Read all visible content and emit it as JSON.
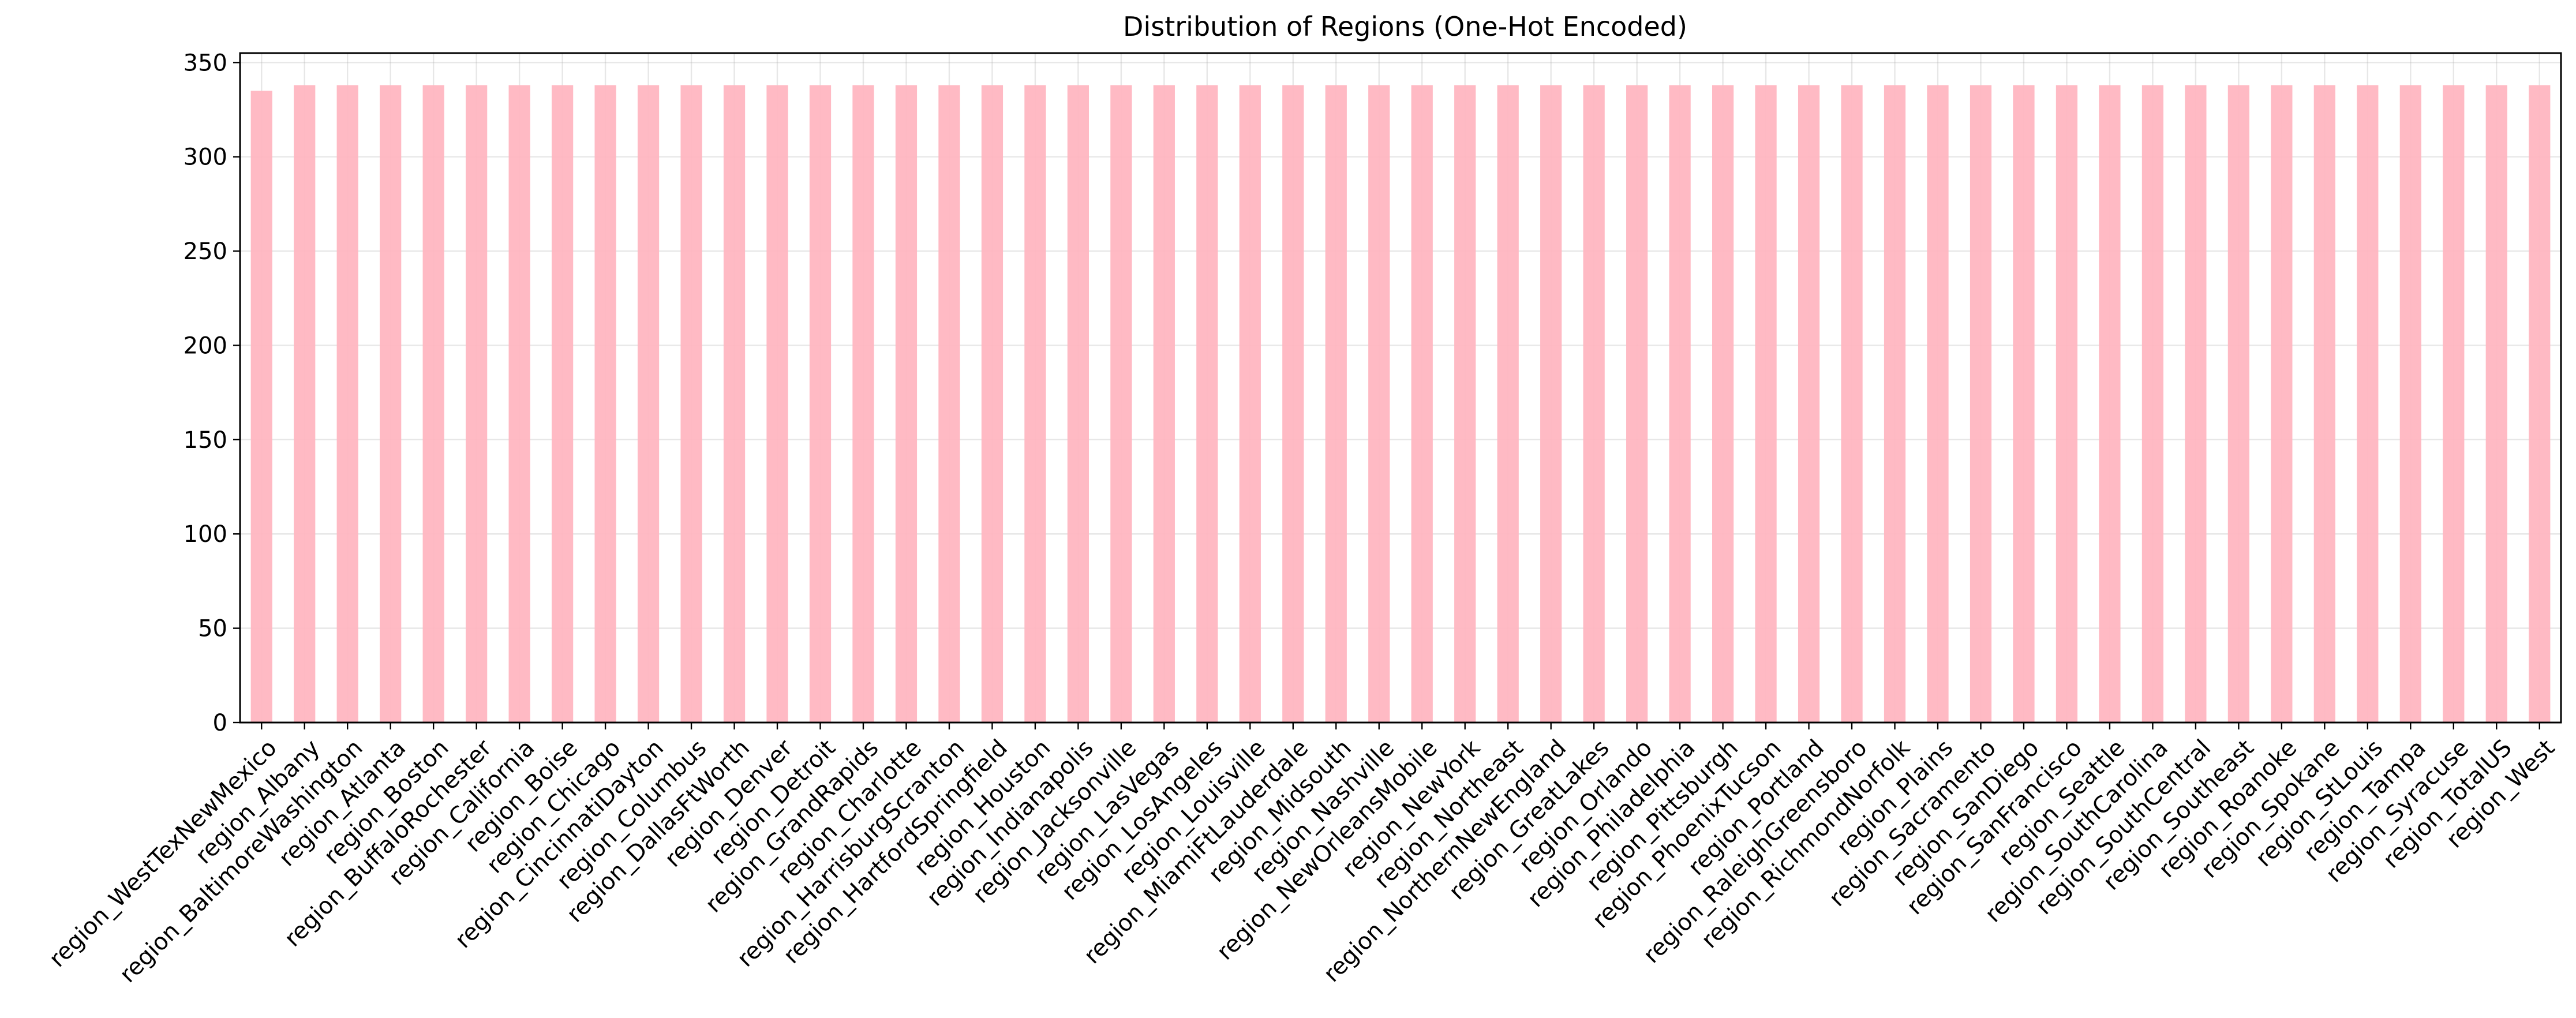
{
  "chart_data": {
    "type": "bar",
    "title": "Distribution of Regions (One-Hot Encoded)",
    "xlabel": "",
    "ylabel": "",
    "ylim": [
      0,
      355
    ],
    "yticks": [
      0,
      50,
      100,
      150,
      200,
      250,
      300,
      350
    ],
    "grid": true,
    "legend": "none",
    "bar_color": "#ffb6c1",
    "categories": [
      "region_WestTexNewMexico",
      "region_Albany",
      "region_BaltimoreWashington",
      "region_Atlanta",
      "region_Boston",
      "region_BuffaloRochester",
      "region_California",
      "region_Boise",
      "region_Chicago",
      "region_CincinnatiDayton",
      "region_Columbus",
      "region_DallasFtWorth",
      "region_Denver",
      "region_Detroit",
      "region_GrandRapids",
      "region_Charlotte",
      "region_HarrisburgScranton",
      "region_HartfordSpringfield",
      "region_Houston",
      "region_Indianapolis",
      "region_Jacksonville",
      "region_LasVegas",
      "region_LosAngeles",
      "region_Louisville",
      "region_MiamiFtLauderdale",
      "region_Midsouth",
      "region_Nashville",
      "region_NewOrleansMobile",
      "region_NewYork",
      "region_Northeast",
      "region_NorthernNewEngland",
      "region_GreatLakes",
      "region_Orlando",
      "region_Philadelphia",
      "region_Pittsburgh",
      "region_PhoenixTucson",
      "region_Portland",
      "region_RaleighGreensboro",
      "region_RichmondNorfolk",
      "region_Plains",
      "region_Sacramento",
      "region_SanDiego",
      "region_SanFrancisco",
      "region_Seattle",
      "region_SouthCarolina",
      "region_SouthCentral",
      "region_Southeast",
      "region_Roanoke",
      "region_Spokane",
      "region_StLouis",
      "region_Tampa",
      "region_Syracuse",
      "region_TotalUS",
      "region_West"
    ],
    "values": [
      335,
      338,
      338,
      338,
      338,
      338,
      338,
      338,
      338,
      338,
      338,
      338,
      338,
      338,
      338,
      338,
      338,
      338,
      338,
      338,
      338,
      338,
      338,
      338,
      338,
      338,
      338,
      338,
      338,
      338,
      338,
      338,
      338,
      338,
      338,
      338,
      338,
      338,
      338,
      338,
      338,
      338,
      338,
      338,
      338,
      338,
      338,
      338,
      338,
      338,
      338,
      338,
      338,
      338
    ]
  }
}
